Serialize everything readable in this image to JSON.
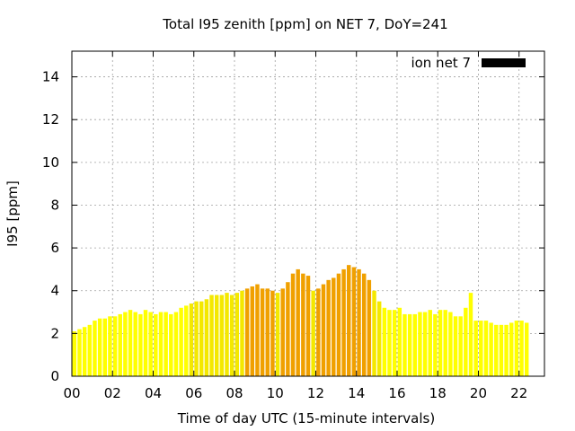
{
  "chart_data": {
    "type": "bar",
    "title": "Total I95 zenith [ppm] on NET 7, DoY=241",
    "xlabel": "Time of day UTC (15-minute intervals)",
    "ylabel": "I95 [ppm]",
    "xlim": [
      0,
      23.25
    ],
    "ylim": [
      0,
      15.2
    ],
    "grid": true,
    "legend": {
      "position": "top-right",
      "label": "ion net 7",
      "color": "#000000"
    },
    "x_ticks": [
      0,
      2,
      4,
      6,
      8,
      10,
      12,
      14,
      16,
      18,
      20,
      22
    ],
    "x_tick_labels": [
      "00",
      "02",
      "04",
      "06",
      "08",
      "10",
      "12",
      "14",
      "16",
      "18",
      "20",
      "22"
    ],
    "y_ticks": [
      0,
      2,
      4,
      6,
      8,
      10,
      12,
      14
    ],
    "y_tick_labels": [
      "0",
      "2",
      "4",
      "6",
      "8",
      "10",
      "12",
      "14"
    ],
    "bar_interval_hours": 0.25,
    "level_colors": {
      "low": "#ffff00",
      "mid": "#f4e800",
      "high": "#f0a000"
    },
    "values": [
      2.1,
      2.2,
      2.3,
      2.4,
      2.6,
      2.7,
      2.7,
      2.8,
      2.8,
      2.9,
      3.0,
      3.1,
      3.0,
      2.9,
      3.1,
      3.0,
      2.9,
      3.0,
      3.0,
      2.9,
      3.0,
      3.2,
      3.3,
      3.4,
      3.5,
      3.5,
      3.6,
      3.8,
      3.8,
      3.8,
      3.9,
      3.8,
      3.9,
      4.0,
      4.1,
      4.2,
      4.3,
      4.1,
      4.1,
      4.0,
      3.9,
      4.1,
      4.4,
      4.8,
      5.0,
      4.8,
      4.7,
      4.0,
      4.1,
      4.3,
      4.5,
      4.6,
      4.8,
      5.0,
      5.2,
      5.1,
      5.0,
      4.8,
      4.5,
      4.0,
      3.5,
      3.2,
      3.1,
      3.1,
      3.2,
      2.9,
      2.9,
      2.9,
      3.0,
      3.0,
      3.1,
      2.9,
      3.1,
      3.1,
      3.0,
      2.8,
      2.8,
      3.2,
      3.9,
      2.6,
      2.6,
      2.6,
      2.5,
      2.4,
      2.4,
      2.4,
      2.5,
      2.6,
      2.6,
      2.5
    ],
    "levels": [
      "low",
      "low",
      "low",
      "low",
      "low",
      "low",
      "low",
      "low",
      "low",
      "low",
      "low",
      "low",
      "low",
      "low",
      "low",
      "low",
      "low",
      "low",
      "low",
      "low",
      "low",
      "low",
      "low",
      "mid",
      "mid",
      "mid",
      "mid",
      "mid",
      "mid",
      "mid",
      "mid",
      "mid",
      "mid",
      "mid",
      "high",
      "high",
      "high",
      "high",
      "high",
      "high",
      "mid",
      "high",
      "high",
      "high",
      "high",
      "high",
      "high",
      "mid",
      "high",
      "high",
      "high",
      "high",
      "high",
      "high",
      "high",
      "high",
      "high",
      "high",
      "high",
      "mid",
      "mid",
      "low",
      "low",
      "low",
      "low",
      "low",
      "low",
      "low",
      "low",
      "low",
      "low",
      "low",
      "low",
      "low",
      "low",
      "low",
      "low",
      "low",
      "low",
      "low",
      "low",
      "low",
      "low",
      "low",
      "low",
      "low",
      "low",
      "low",
      "low",
      "low"
    ]
  }
}
